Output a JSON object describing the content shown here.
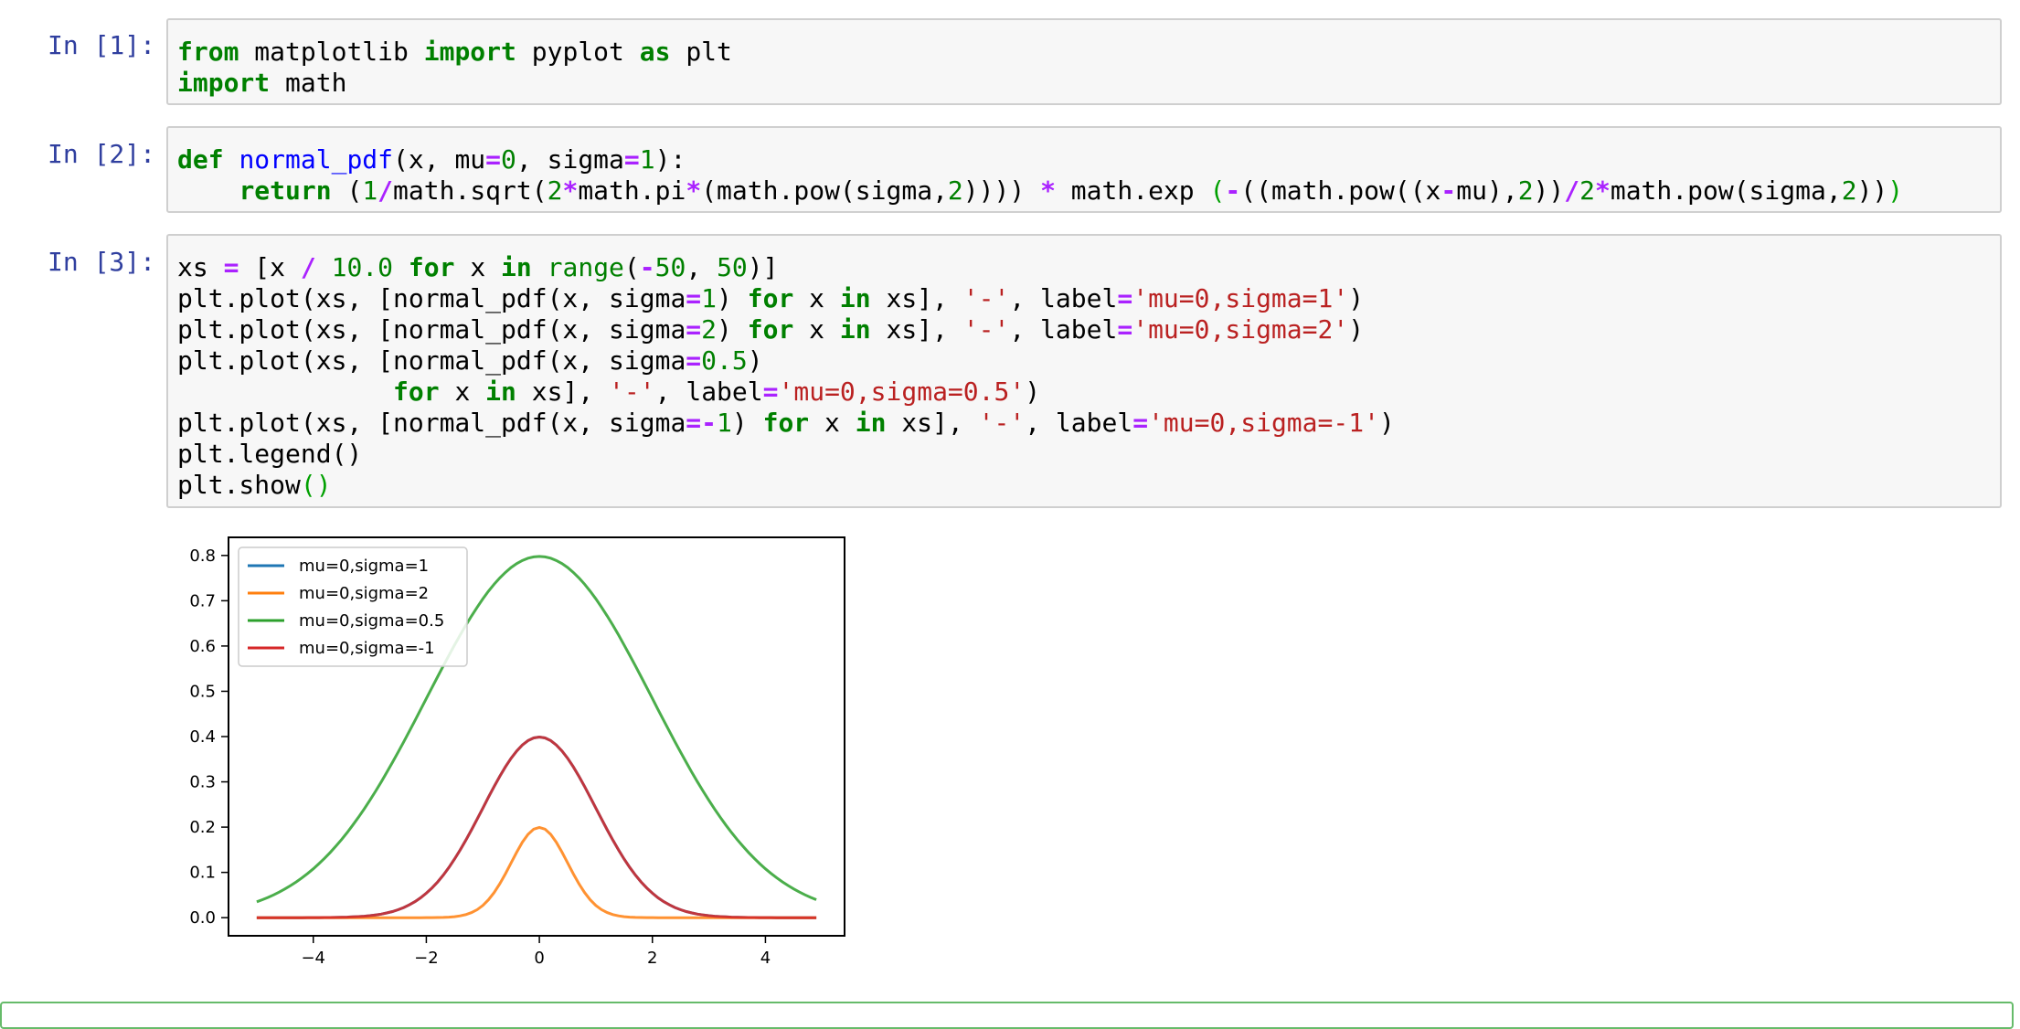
{
  "cells": [
    {
      "prompt": "In [1]:",
      "lines": [
        [
          [
            "kw",
            "from"
          ],
          [
            "",
            "matplotlib"
          ],
          [
            "kw",
            "import"
          ],
          [
            "",
            "pyplot"
          ],
          [
            "kw",
            "as"
          ],
          [
            "",
            "plt"
          ]
        ],
        [
          [
            "kw",
            "import"
          ],
          [
            "",
            "math"
          ]
        ]
      ]
    },
    {
      "prompt": "In [2]:",
      "lines": [
        [
          [
            "kw",
            "def"
          ],
          [
            "",
            "x"
          ]
        ],
        [
          [
            "",
            "return"
          ]
        ]
      ]
    }
  ],
  "code": {
    "c1": {
      "prompt": "In [1]:",
      "l1": {
        "k1": "from",
        "t1": " matplotlib ",
        "k2": "import",
        "t2": " pyplot ",
        "k3": "as",
        "t3": " plt"
      },
      "l2": {
        "k1": "import",
        "t1": " math"
      }
    },
    "c2": {
      "prompt": "In [2]:",
      "l1": {
        "k1": "def",
        "s1": " ",
        "f1": "normal_pdf",
        "t1": "(x, mu",
        "o1": "=",
        "n1": "0",
        "t2": ", sigma",
        "o2": "=",
        "n2": "1",
        "t3": "):"
      },
      "l2": {
        "ind": "    ",
        "k1": "return",
        "t1": " (",
        "n1": "1",
        "o1": "/",
        "t2": "math.sqrt(",
        "n2": "2",
        "o2": "*",
        "t3": "math.pi",
        "o3": "*",
        "t4": "(math.pow(sigma,",
        "n3": "2",
        "t5": ")))) ",
        "o4": "*",
        "t6": " math.exp ",
        "p1": "(",
        "o5": "-",
        "t7": "((math.pow((x",
        "o6": "-",
        "t8": "mu),",
        "n4": "2",
        "t9": "))",
        "o7": "/",
        "n5": "2",
        "o8": "*",
        "t10": "math.pow(sigma,",
        "n6": "2",
        "t11": "))",
        "p2": ")"
      }
    },
    "c3": {
      "prompt": "In [3]:",
      "l1": {
        "t1": "xs ",
        "o1": "=",
        "t2": " [x ",
        "o2": "/",
        "t3": " ",
        "n1": "10.0",
        "t4": " ",
        "k1": "for",
        "t5": " x ",
        "k2": "in",
        "t6": " ",
        "b1": "range",
        "t7": "(",
        "o3": "-",
        "n2": "50",
        "t8": ", ",
        "n3": "50",
        "t9": ")]"
      },
      "l2": {
        "t1": "plt.plot(xs, [normal_pdf(x, sigma",
        "o1": "=",
        "n1": "1",
        "t2": ") ",
        "k1": "for",
        "t3": " x ",
        "k2": "in",
        "t4": " xs], ",
        "s1": "'-'",
        "t5": ", label",
        "o2": "=",
        "s2": "'mu=0,sigma=1'",
        "t6": ")"
      },
      "l3": {
        "t1": "plt.plot(xs, [normal_pdf(x, sigma",
        "o1": "=",
        "n1": "2",
        "t2": ") ",
        "k1": "for",
        "t3": " x ",
        "k2": "in",
        "t4": " xs], ",
        "s1": "'-'",
        "t5": ", label",
        "o2": "=",
        "s2": "'mu=0,sigma=2'",
        "t6": ")"
      },
      "l4": {
        "t1": "plt.plot(xs, [normal_pdf(x, sigma",
        "o1": "=",
        "n1": "0.5",
        "t2": ")"
      },
      "l5": {
        "ind": "              ",
        "k1": "for",
        "t1": " x ",
        "k2": "in",
        "t2": " xs], ",
        "s1": "'-'",
        "t3": ", label",
        "o1": "=",
        "s2": "'mu=0,sigma=0.5'",
        "t4": ")"
      },
      "l6": {
        "t1": "plt.plot(xs, [normal_pdf(x, sigma",
        "o1": "=-",
        "n1": "1",
        "t2": ") ",
        "k1": "for",
        "t3": " x ",
        "k2": "in",
        "t4": " xs], ",
        "s1": "'-'",
        "t5": ", label",
        "o2": "=",
        "s2": "'mu=0,sigma=-1'",
        "t6": ")"
      },
      "l7": {
        "t1": "plt.legend()"
      },
      "l8": {
        "t1": "plt.show",
        "p1": "()"
      }
    }
  },
  "colors": {
    "prompt": "#303f9f",
    "keyword": "#008000",
    "operator": "#aa22ff",
    "string": "#ba2121",
    "function": "#0000ff",
    "series": [
      "#1f77b4",
      "#ff7f0e",
      "#2ca02c",
      "#d62728"
    ]
  },
  "chart_data": {
    "type": "line",
    "title": "",
    "xlabel": "",
    "ylabel": "",
    "xlim": [
      -5.5,
      5.4
    ],
    "ylim": [
      -0.04,
      0.84
    ],
    "x_ticks": [
      "−4",
      "−2",
      "0",
      "2",
      "4"
    ],
    "x_tick_values": [
      -4,
      -2,
      0,
      2,
      4
    ],
    "y_ticks": [
      "0.0",
      "0.1",
      "0.2",
      "0.3",
      "0.4",
      "0.5",
      "0.6",
      "0.7",
      "0.8"
    ],
    "y_tick_values": [
      0,
      0.1,
      0.2,
      0.3,
      0.4,
      0.5,
      0.6,
      0.7,
      0.8
    ],
    "x_range": [
      -5.0,
      4.9
    ],
    "x_step": 0.1,
    "grid": false,
    "legend_position": "top-left",
    "series": [
      {
        "name": "mu=0,sigma=1",
        "formula": "normal_pdf(x, sigma=1)",
        "sigma": 1
      },
      {
        "name": "mu=0,sigma=2",
        "formula": "normal_pdf(x, sigma=2)",
        "sigma": 2
      },
      {
        "name": "mu=0,sigma=0.5",
        "formula": "normal_pdf(x, sigma=0.5)",
        "sigma": 0.5
      },
      {
        "name": "mu=0,sigma=-1",
        "formula": "normal_pdf(x, sigma=-1)",
        "sigma": -1
      }
    ]
  }
}
